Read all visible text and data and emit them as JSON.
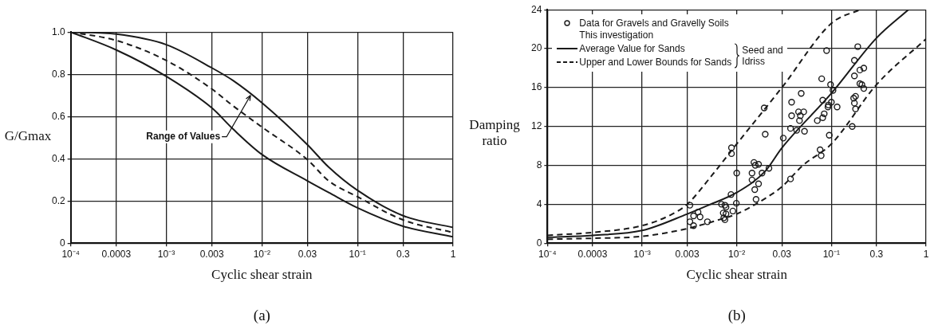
{
  "chart_data": [
    {
      "type": "line",
      "xlabel": "Cyclic shear strain",
      "ylabel": "G/Gmax",
      "log": "x",
      "grid": true,
      "legend": false,
      "xlim": [
        0.0001,
        1
      ],
      "xticks": [
        {
          "value": 0.0001,
          "label": "10⁻⁴"
        },
        0.0003,
        {
          "value": 0.001,
          "label": "10⁻³"
        },
        0.003,
        {
          "value": 0.01,
          "label": "10⁻²"
        },
        0.03,
        {
          "value": 0.1,
          "label": "10⁻¹"
        },
        0.3,
        1
      ],
      "ylim": [
        0,
        1
      ],
      "yticks": [
        0,
        0.2,
        0.4,
        0.6,
        0.8,
        {
          "value": 1,
          "label": "1.0"
        }
      ],
      "annotations": [
        {
          "text": "Range of Values",
          "x": 0.0076,
          "y": 0.7
        },
        "(a)"
      ],
      "x": [
        0.0001,
        0.0003,
        0.001,
        0.003,
        0.005,
        0.01,
        0.03,
        0.05,
        0.1,
        0.3,
        1
      ],
      "series": [
        {
          "color": "#1a1a1a",
          "line_style": "solid",
          "values": [
            1.0,
            0.99,
            0.94,
            0.83,
            0.77,
            0.665,
            0.466,
            0.36,
            0.25,
            0.13,
            0.074
          ]
        },
        {
          "color": "#1a1a1a",
          "line_style": "dashed",
          "values": [
            1.0,
            0.96,
            0.865,
            0.73,
            0.65,
            0.55,
            0.395,
            0.295,
            0.22,
            0.11,
            0.05
          ]
        },
        {
          "color": "#1a1a1a",
          "line_style": "solid",
          "values": [
            1.0,
            0.915,
            0.79,
            0.64,
            0.54,
            0.42,
            0.295,
            0.24,
            0.167,
            0.08,
            0.03
          ]
        }
      ]
    },
    {
      "type": "scatter",
      "xlabel": "Cyclic shear strain",
      "ylabel": "Damping ratio",
      "log": "x",
      "grid": true,
      "legend": "top left",
      "xlim": [
        0.0001,
        1
      ],
      "xticks": [
        {
          "value": 0.0001,
          "label": "10⁻⁴"
        },
        0.0003,
        {
          "value": 0.001,
          "label": "10⁻³"
        },
        0.003,
        {
          "value": 0.01,
          "label": "10⁻²"
        },
        0.03,
        {
          "value": 0.1,
          "label": "10⁻¹"
        },
        0.3,
        1
      ],
      "ylim": [
        0,
        24
      ],
      "yticks": [
        0,
        4,
        8,
        12,
        16,
        20,
        24
      ],
      "annotations": [
        "Seed and Idriss",
        "(b)"
      ],
      "series": [
        {
          "name": "Data for Gravels and Gravelly Soils\nThis investigation",
          "type": "scatter",
          "marker": "circle",
          "color": "#1a1a1a",
          "x": [
            0.0032,
            0.0032,
            0.0035,
            0.0039,
            0.0041,
            0.0035,
            0.0049,
            0.0069,
            0.0075,
            0.0077,
            0.0072,
            0.0077,
            0.0073,
            0.0075,
            0.0087,
            0.0091,
            0.0099,
            0.01,
            0.0088,
            0.0145,
            0.0145,
            0.0152,
            0.0157,
            0.017,
            0.0155,
            0.017,
            0.016,
            0.0185,
            0.0219,
            0.037,
            0.078,
            0.0088,
            0.02,
            0.031,
            0.0195,
            0.038,
            0.048,
            0.038,
            0.045,
            0.051,
            0.047,
            0.046,
            0.037,
            0.043,
            0.052,
            0.071,
            0.081,
            0.084,
            0.081,
            0.093,
            0.092,
            0.115,
            0.1,
            0.104,
            0.098,
            0.079,
            0.089,
            0.095,
            0.076,
            0.166,
            0.172,
            0.18,
            0.175,
            0.18,
            0.175,
            0.2,
            0.22,
            0.2,
            0.21,
            0.22,
            0.175,
            0.19
          ],
          "values": [
            3.9,
            2.2,
            2.8,
            3.2,
            2.7,
            1.8,
            2.2,
            4.0,
            3.9,
            3.7,
            3.1,
            3.0,
            2.6,
            2.4,
            5.0,
            3.3,
            4.1,
            7.2,
            9.2,
            7.2,
            6.5,
            8.3,
            8.0,
            8.1,
            5.5,
            6.1,
            4.5,
            7.2,
            7.7,
            6.6,
            9.0,
            9.8,
            11.2,
            10.8,
            13.9,
            14.5,
            15.4,
            13.1,
            13.5,
            13.5,
            13.1,
            12.6,
            11.8,
            11.6,
            11.5,
            12.6,
            12.9,
            13.3,
            14.7,
            14.2,
            14.0,
            14.0,
            14.5,
            15.7,
            16.3,
            16.9,
            19.8,
            11.1,
            9.6,
            12.0,
            14.9,
            15.1,
            14.4,
            13.8,
            17.2,
            17.8,
            18.0,
            16.4,
            16.3,
            15.9,
            18.8,
            20.2
          ]
        },
        {
          "name": "Average Value for Sands",
          "type": "line",
          "line_style": "solid",
          "color": "#1a1a1a",
          "x": [
            0.0001,
            0.0003,
            0.001,
            0.003,
            0.005,
            0.01,
            0.02,
            0.03,
            0.1,
            0.3,
            0.65
          ],
          "values": [
            0.6,
            0.8,
            1.3,
            3.0,
            3.9,
            5.2,
            7.4,
            9.8,
            15.4,
            21.1,
            24
          ]
        },
        {
          "name": "Upper and Lower Bounds for Sands",
          "type": "line",
          "line_style": "dashed",
          "color": "#1a1a1a",
          "x": [
            0.0001,
            0.0003,
            0.001,
            0.002,
            0.003,
            0.0055,
            0.01,
            0.03,
            0.1,
            0.2
          ],
          "values": [
            0.8,
            1.1,
            1.8,
            2.9,
            4.0,
            7.0,
            10.2,
            16.0,
            22.6,
            24
          ]
        },
        {
          "type": "line",
          "line_style": "dashed",
          "color": "#1a1a1a",
          "x": [
            0.0001,
            0.0003,
            0.001,
            0.003,
            0.007,
            0.01,
            0.02,
            0.03,
            0.05,
            0.1,
            0.3,
            1
          ],
          "values": [
            0.4,
            0.5,
            0.7,
            1.5,
            2.5,
            3.0,
            4.6,
            5.8,
            8.0,
            10.2,
            16.3,
            21
          ]
        }
      ]
    }
  ]
}
